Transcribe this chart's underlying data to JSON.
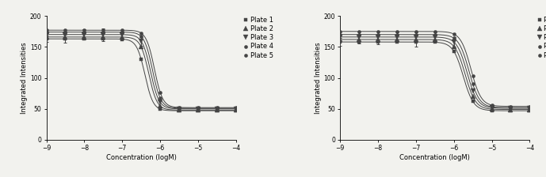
{
  "xlabel": "Concentration (logM)",
  "ylabel": "Integrated Intensities",
  "xlim": [
    -9,
    -4
  ],
  "ylim": [
    0,
    200
  ],
  "yticks": [
    0,
    50,
    100,
    150,
    200
  ],
  "xticks": [
    -9,
    -8,
    -7,
    -6,
    -5,
    -4
  ],
  "legend_labels": [
    "Plate 1",
    "Plate 2",
    "Plate 3",
    "Plate 4",
    "Plate 5"
  ],
  "markers": [
    "s",
    "^",
    "v",
    "o",
    "o"
  ],
  "marker_sizes": [
    3,
    4,
    4,
    3,
    3
  ],
  "line_color": "#444444",
  "plot1": {
    "top_values": [
      163,
      166,
      170,
      174,
      177
    ],
    "bottom_values": [
      47,
      48,
      50,
      51,
      52
    ],
    "ec50_log": [
      -6.4,
      -6.3,
      -6.25,
      -6.2,
      -6.15
    ],
    "hill": [
      4.0,
      4.0,
      4.0,
      4.0,
      4.0
    ],
    "err_points": [
      {
        "x": -9.0,
        "y_plate": 0,
        "yerr": 5
      },
      {
        "x": -8.5,
        "y_plate": 0,
        "yerr": 6
      },
      {
        "x": -8.0,
        "y_plate": 2,
        "yerr": 8
      },
      {
        "x": -7.5,
        "y_plate": 2,
        "yerr": 10
      },
      {
        "x": -7.0,
        "y_plate": 2,
        "yerr": 8
      },
      {
        "x": -6.5,
        "y_plate": 2,
        "yerr": 7
      }
    ]
  },
  "plot2": {
    "top_values": [
      158,
      162,
      166,
      170,
      175
    ],
    "bottom_values": [
      47,
      49,
      51,
      52,
      54
    ],
    "ec50_log": [
      -5.75,
      -5.7,
      -5.65,
      -5.6,
      -5.55
    ],
    "hill": [
      3.2,
      3.2,
      3.2,
      3.2,
      3.2
    ],
    "err_points": [
      {
        "x": -9.0,
        "y_plate": 0,
        "yerr": 6
      },
      {
        "x": -8.5,
        "y_plate": 2,
        "yerr": 10
      },
      {
        "x": -8.0,
        "y_plate": 1,
        "yerr": 8
      },
      {
        "x": -7.5,
        "y_plate": 2,
        "yerr": 7
      },
      {
        "x": -7.0,
        "y_plate": 1,
        "yerr": 12
      },
      {
        "x": -6.5,
        "y_plate": 2,
        "yerr": 8
      },
      {
        "x": -6.0,
        "y_plate": 2,
        "yerr": 8
      }
    ]
  },
  "bg_color": "#f2f2ee",
  "font_size": 6,
  "tick_font_size": 5.5,
  "legend_font_size": 6
}
